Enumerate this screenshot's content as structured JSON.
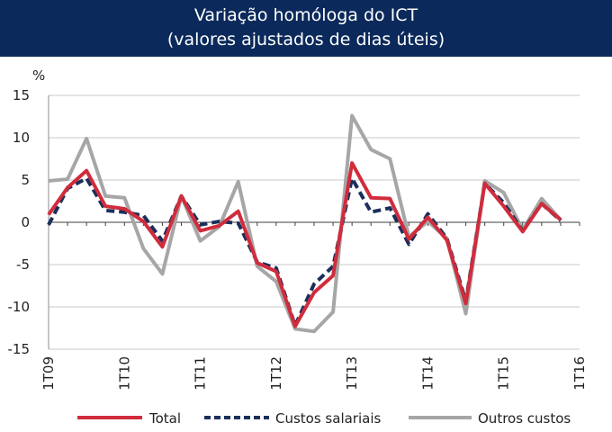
{
  "chart_data": {
    "type": "line",
    "title_line1": "Variação homóloga do ICT",
    "title_line2": "(valores ajustados de dias úteis)",
    "ylabel": "%",
    "ylim": [
      -15,
      15
    ],
    "yticks": [
      15,
      10,
      5,
      0,
      -5,
      -10,
      -15
    ],
    "x_tick_labels": [
      "1T09",
      "1T10",
      "1T11",
      "1T12",
      "1T13",
      "1T14",
      "1T15",
      "1T16"
    ],
    "x_tick_indices": [
      0,
      4,
      8,
      12,
      16,
      20,
      24,
      28
    ],
    "n_points": 29,
    "series": [
      {
        "name": "Outros custos",
        "color": "#a6a6a6",
        "dash": "",
        "values": [
          4.9,
          5.1,
          9.9,
          3.1,
          2.9,
          -3.1,
          -6.1,
          3.1,
          -2.2,
          -0.5,
          4.8,
          -5.2,
          -7.0,
          -12.6,
          -12.9,
          -10.6,
          12.6,
          8.6,
          7.5,
          -1.7,
          0.1,
          -1.9,
          -10.8,
          4.9,
          3.5,
          -0.9,
          2.8,
          0.3,
          null
        ]
      },
      {
        "name": "Custos salariais",
        "color": "#1a2f5a",
        "dash": "9,5",
        "values": [
          -0.3,
          4.0,
          5.2,
          1.4,
          1.2,
          0.8,
          -2.2,
          3.1,
          -0.3,
          0.1,
          -0.1,
          -4.7,
          -5.4,
          -12.2,
          -7.3,
          -5.2,
          5.2,
          1.2,
          1.7,
          -2.6,
          1.0,
          -1.9,
          -9.3,
          4.6,
          2.3,
          -1.0,
          2.2,
          0.2,
          null
        ]
      },
      {
        "name": "Total",
        "color": "#d12c3c",
        "dash": "",
        "values": [
          0.9,
          4.1,
          6.1,
          1.9,
          1.6,
          0.1,
          -2.9,
          3.1,
          -1.0,
          -0.4,
          1.3,
          -4.8,
          -5.8,
          -12.3,
          -8.3,
          -6.3,
          7.0,
          2.9,
          2.8,
          -2.0,
          0.6,
          -2.1,
          -9.6,
          4.6,
          1.9,
          -1.1,
          2.2,
          0.3,
          null
        ]
      }
    ],
    "legend": [
      {
        "name": "Total",
        "color": "#d12c3c",
        "dash": ""
      },
      {
        "name": "Custos salariais",
        "color": "#1a2f5a",
        "dash": "7,4"
      },
      {
        "name": "Outros custos",
        "color": "#a6a6a6",
        "dash": ""
      }
    ],
    "grid": true,
    "legend_position": "bottom"
  }
}
